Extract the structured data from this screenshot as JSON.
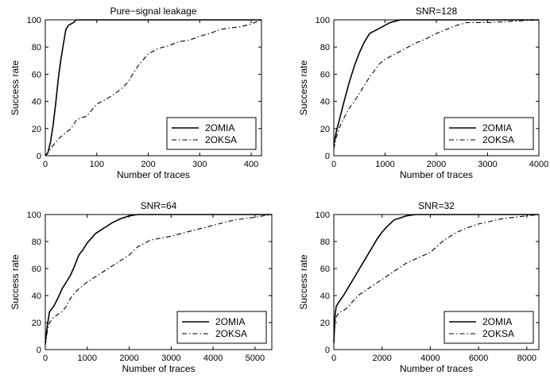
{
  "chart_data": [
    {
      "type": "line",
      "title": "Pure−signal leakage",
      "xlabel": "Number of traces",
      "ylabel": "Success rate",
      "xlim": [
        0,
        420
      ],
      "ylim": [
        0,
        100
      ],
      "xticks": [
        0,
        100,
        200,
        300,
        400
      ],
      "xtick_labels": [
        "0",
        "100",
        "200",
        "300",
        "400"
      ],
      "yticks": [
        0,
        20,
        40,
        60,
        80,
        100
      ],
      "ytick_labels": [
        "0",
        "20",
        "40",
        "60",
        "80",
        "100"
      ],
      "legend": "bottom-right",
      "grid": false,
      "series": [
        {
          "name": "2OMIA",
          "style": "solid",
          "x": [
            0,
            5,
            10,
            15,
            20,
            25,
            30,
            35,
            40,
            45,
            50,
            55,
            60,
            70,
            420
          ],
          "y": [
            0,
            2,
            10,
            22,
            38,
            56,
            70,
            82,
            93,
            96,
            97,
            98,
            100,
            100,
            100
          ]
        },
        {
          "name": "2OKSA",
          "style": "dashdot",
          "x": [
            0,
            5,
            10,
            20,
            30,
            40,
            50,
            60,
            70,
            80,
            100,
            120,
            140,
            150,
            160,
            180,
            200,
            220,
            240,
            260,
            280,
            300,
            320,
            340,
            360,
            380,
            400,
            420
          ],
          "y": [
            0,
            2,
            5,
            10,
            14,
            17,
            20,
            26,
            28,
            29,
            38,
            42,
            47,
            50,
            54,
            66,
            75,
            79,
            81,
            84,
            85,
            88,
            90,
            93,
            94,
            95,
            97,
            100
          ]
        }
      ]
    },
    {
      "type": "line",
      "title": "SNR=128",
      "xlabel": "Number of traces",
      "ylabel": "Success rate",
      "xlim": [
        0,
        4000
      ],
      "ylim": [
        0,
        100
      ],
      "xticks": [
        0,
        1000,
        2000,
        3000,
        4000
      ],
      "xtick_labels": [
        "0",
        "1000",
        "2000",
        "3000",
        "4000"
      ],
      "yticks": [
        0,
        20,
        40,
        60,
        80,
        100
      ],
      "ytick_labels": [
        "0",
        "20",
        "40",
        "60",
        "80",
        "100"
      ],
      "legend": "bottom-right",
      "grid": false,
      "series": [
        {
          "name": "2OMIA",
          "style": "solid",
          "x": [
            0,
            50,
            100,
            200,
            300,
            400,
            500,
            600,
            700,
            800,
            900,
            1000,
            1100,
            1200,
            1300,
            1400,
            4000
          ],
          "y": [
            8,
            18,
            25,
            40,
            54,
            66,
            76,
            84,
            90,
            92,
            94,
            96,
            98,
            99,
            100,
            100,
            100
          ]
        },
        {
          "name": "2OKSA",
          "style": "dashdot",
          "x": [
            0,
            50,
            100,
            200,
            300,
            400,
            500,
            600,
            700,
            800,
            900,
            1000,
            1200,
            1400,
            1600,
            1800,
            2000,
            2200,
            2400,
            2600,
            3000,
            3500,
            4000
          ],
          "y": [
            5,
            14,
            20,
            28,
            35,
            40,
            46,
            52,
            58,
            63,
            68,
            71,
            75,
            79,
            83,
            86,
            90,
            93,
            96,
            98,
            98,
            99,
            100
          ]
        }
      ]
    },
    {
      "type": "line",
      "title": "SNR=64",
      "xlabel": "Number of traces",
      "ylabel": "Success rate",
      "xlim": [
        0,
        5400
      ],
      "ylim": [
        0,
        100
      ],
      "xticks": [
        0,
        1000,
        2000,
        3000,
        4000,
        5000
      ],
      "xtick_labels": [
        "0",
        "1000",
        "2000",
        "3000",
        "4000",
        "5000"
      ],
      "yticks": [
        0,
        20,
        40,
        60,
        80,
        100
      ],
      "ytick_labels": [
        "0",
        "20",
        "40",
        "60",
        "80",
        "100"
      ],
      "legend": "bottom-right",
      "grid": false,
      "series": [
        {
          "name": "2OMIA",
          "style": "solid",
          "x": [
            0,
            50,
            100,
            200,
            300,
            400,
            500,
            600,
            700,
            800,
            900,
            1000,
            1200,
            1400,
            1600,
            1800,
            2000,
            2200,
            2400,
            5400
          ],
          "y": [
            5,
            18,
            28,
            32,
            38,
            45,
            50,
            55,
            62,
            70,
            74,
            79,
            86,
            90,
            94,
            97,
            99,
            100,
            100,
            100
          ]
        },
        {
          "name": "2OKSA",
          "style": "dashdot",
          "x": [
            0,
            50,
            100,
            200,
            300,
            400,
            500,
            600,
            700,
            800,
            1000,
            1200,
            1400,
            1600,
            1800,
            2000,
            2200,
            2500,
            3000,
            3500,
            4000,
            4500,
            5000,
            5400
          ],
          "y": [
            3,
            14,
            20,
            24,
            26,
            28,
            32,
            38,
            42,
            45,
            50,
            54,
            58,
            62,
            66,
            70,
            76,
            81,
            84,
            88,
            92,
            96,
            98,
            100
          ]
        }
      ]
    },
    {
      "type": "line",
      "title": "SNR=32",
      "xlabel": "Number of traces",
      "ylabel": "Success rate",
      "xlim": [
        0,
        8500
      ],
      "ylim": [
        0,
        100
      ],
      "xticks": [
        0,
        2000,
        4000,
        6000,
        8000
      ],
      "xtick_labels": [
        "0",
        "2000",
        "4000",
        "6000",
        "8000"
      ],
      "yticks": [
        0,
        20,
        40,
        60,
        80,
        100
      ],
      "ytick_labels": [
        "0",
        "20",
        "40",
        "60",
        "80",
        "100"
      ],
      "legend": "bottom-right",
      "grid": false,
      "series": [
        {
          "name": "2OMIA",
          "style": "solid",
          "x": [
            0,
            50,
            100,
            200,
            400,
            600,
            800,
            1000,
            1200,
            1400,
            1600,
            1800,
            2000,
            2200,
            2500,
            3000,
            3400,
            8500
          ],
          "y": [
            5,
            25,
            32,
            35,
            40,
            46,
            52,
            58,
            64,
            70,
            76,
            82,
            87,
            91,
            96,
            99,
            100,
            100
          ]
        },
        {
          "name": "2OKSA",
          "style": "dashdot",
          "x": [
            0,
            50,
            100,
            200,
            500,
            800,
            1000,
            1500,
            2000,
            2500,
            3000,
            3500,
            4000,
            4500,
            5000,
            5500,
            6000,
            6500,
            7000,
            7500,
            8000,
            8500
          ],
          "y": [
            8,
            20,
            24,
            27,
            30,
            36,
            40,
            46,
            52,
            58,
            64,
            68,
            72,
            80,
            86,
            90,
            93,
            95,
            97,
            98,
            99,
            100
          ]
        }
      ]
    }
  ]
}
